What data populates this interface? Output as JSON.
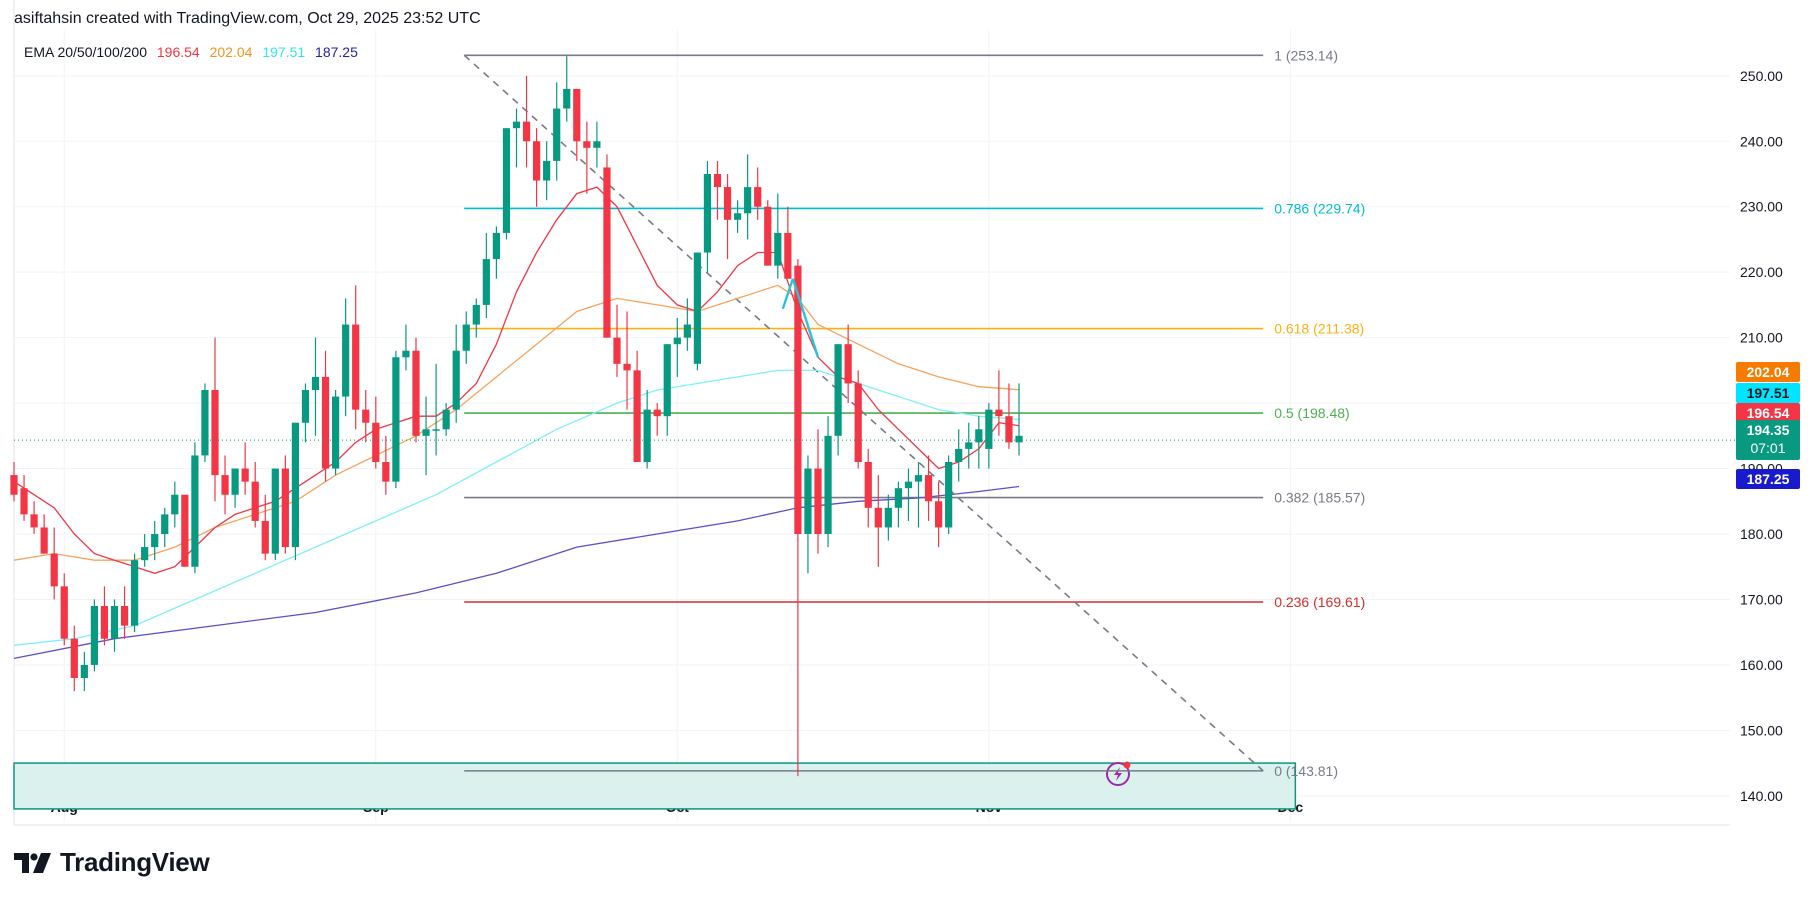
{
  "header": {
    "attribution": "asiftahsin created with TradingView.com, Oct 29, 2025 23:52 UTC"
  },
  "legend": {
    "label": "EMA 20/50/100/200",
    "values": [
      {
        "text": "196.54",
        "color": "#f23645"
      },
      {
        "text": "202.04",
        "color": "#f7931a"
      },
      {
        "text": "197.51",
        "color": "#33e3f0"
      },
      {
        "text": "187.25",
        "color": "#1f1fb4"
      }
    ]
  },
  "brand": {
    "name": "TradingView",
    "icon": "tradingview-logo-icon"
  },
  "colors": {
    "up": "#089981",
    "down": "#f23645",
    "ema20": "#f23645",
    "ema50": "#f7a35c",
    "ema100": "#7ff0f7",
    "ema200": "#5b4fc9",
    "zone_fill": "#daf1ee",
    "zone_border": "#089981"
  },
  "chart_data": {
    "type": "candlestick",
    "y_axis": {
      "min": 136,
      "max": 257,
      "ticks": [
        "140.00",
        "150.00",
        "160.00",
        "170.00",
        "180.00",
        "190.00",
        "200.00",
        "210.00",
        "220.00",
        "230.00",
        "240.00",
        "250.00"
      ],
      "side": "right"
    },
    "x_axis": {
      "labels": [
        {
          "text": "Aug",
          "index": 5
        },
        {
          "text": "Sep",
          "index": 36
        },
        {
          "text": "Oct",
          "index": 66
        },
        {
          "text": "Nov",
          "index": 97
        },
        {
          "text": "Dec",
          "index": 127
        }
      ],
      "first_index": 0,
      "last_index": 129
    },
    "grid": true,
    "candles": [
      [
        0,
        189,
        191,
        185,
        186
      ],
      [
        1,
        187,
        189,
        182,
        183
      ],
      [
        2,
        183,
        185,
        180,
        181
      ],
      [
        3,
        181,
        183,
        177,
        177
      ],
      [
        4,
        177,
        181,
        170,
        172
      ],
      [
        5,
        172,
        174,
        163,
        164
      ],
      [
        6,
        164,
        166,
        156,
        158
      ],
      [
        7,
        158,
        162,
        156,
        160
      ],
      [
        8,
        160,
        170,
        159,
        169
      ],
      [
        9,
        169,
        172,
        163,
        164
      ],
      [
        10,
        164,
        170,
        162,
        169
      ],
      [
        11,
        169,
        172,
        164,
        166
      ],
      [
        12,
        166,
        177,
        165,
        176
      ],
      [
        13,
        176,
        180,
        175,
        178
      ],
      [
        14,
        178,
        182,
        176,
        180
      ],
      [
        15,
        180,
        184,
        178,
        183
      ],
      [
        16,
        183,
        188,
        181,
        186
      ],
      [
        17,
        186,
        185,
        175,
        175
      ],
      [
        18,
        175,
        194,
        174,
        192
      ],
      [
        19,
        192,
        203,
        191,
        202
      ],
      [
        20,
        202,
        210,
        185,
        189
      ],
      [
        21,
        189,
        192,
        183,
        186
      ],
      [
        22,
        186,
        190,
        184,
        190
      ],
      [
        23,
        190,
        194,
        186,
        188
      ],
      [
        24,
        188,
        191,
        181,
        182
      ],
      [
        25,
        182,
        186,
        176,
        177
      ],
      [
        26,
        177,
        190,
        176,
        190
      ],
      [
        27,
        190,
        192,
        177,
        178
      ],
      [
        28,
        178,
        197,
        176,
        197
      ],
      [
        29,
        197,
        203,
        194,
        202
      ],
      [
        30,
        202,
        210,
        195,
        204
      ],
      [
        31,
        204,
        208,
        188,
        190
      ],
      [
        32,
        190,
        202,
        189,
        201
      ],
      [
        33,
        201,
        216,
        198,
        212
      ],
      [
        34,
        212,
        218,
        196,
        199
      ],
      [
        35,
        199,
        202,
        194,
        197
      ],
      [
        36,
        197,
        201,
        190,
        191
      ],
      [
        37,
        191,
        195,
        186,
        188
      ],
      [
        38,
        188,
        208,
        187,
        207
      ],
      [
        39,
        207,
        212,
        205,
        208
      ],
      [
        40,
        208,
        210,
        194,
        195
      ],
      [
        41,
        195,
        201,
        189,
        196
      ],
      [
        42,
        196,
        206,
        192,
        196
      ],
      [
        43,
        196,
        200,
        195,
        199
      ],
      [
        44,
        199,
        212,
        197,
        208
      ],
      [
        45,
        208,
        214,
        206,
        212
      ],
      [
        46,
        212,
        216,
        210,
        215
      ],
      [
        47,
        215,
        226,
        213,
        222
      ],
      [
        48,
        222,
        227,
        219,
        226
      ],
      [
        49,
        226,
        242,
        225,
        242
      ],
      [
        50,
        242,
        245,
        236,
        243
      ],
      [
        51,
        243,
        250,
        236,
        240
      ],
      [
        52,
        240,
        242,
        230,
        234
      ],
      [
        53,
        234,
        240,
        231,
        237
      ],
      [
        54,
        237,
        249,
        234,
        245
      ],
      [
        55,
        245,
        253,
        243,
        248
      ],
      [
        56,
        248,
        248,
        237,
        240
      ],
      [
        57,
        240,
        243,
        232,
        239
      ],
      [
        58,
        239,
        243,
        236,
        240
      ],
      [
        59,
        236,
        238,
        210,
        210
      ],
      [
        60,
        210,
        215,
        204,
        206
      ],
      [
        61,
        206,
        214,
        199,
        205
      ],
      [
        62,
        205,
        208,
        191,
        191
      ],
      [
        63,
        191,
        202,
        190,
        199
      ],
      [
        64,
        199,
        200,
        195,
        198
      ],
      [
        65,
        198,
        209,
        195,
        209
      ],
      [
        66,
        209,
        213,
        204,
        210
      ],
      [
        67,
        210,
        216,
        208,
        212
      ],
      [
        68,
        206,
        223,
        205,
        223
      ],
      [
        69,
        223,
        237,
        220,
        235
      ],
      [
        70,
        235,
        237,
        228,
        233
      ],
      [
        71,
        233,
        235,
        222,
        228
      ],
      [
        72,
        228,
        231,
        226,
        229
      ],
      [
        73,
        229,
        238,
        225,
        233
      ],
      [
        74,
        233,
        236,
        228,
        230
      ],
      [
        75,
        230,
        231,
        221,
        221
      ],
      [
        76,
        221,
        232,
        219,
        226
      ],
      [
        77,
        226,
        230,
        219,
        219
      ],
      [
        78,
        221,
        222,
        143,
        180
      ],
      [
        79,
        180,
        192,
        174,
        190
      ],
      [
        80,
        190,
        196,
        177,
        180
      ],
      [
        81,
        180,
        198,
        178,
        195
      ],
      [
        82,
        195,
        209,
        192,
        209
      ],
      [
        83,
        209,
        212,
        200,
        203
      ],
      [
        84,
        203,
        205,
        190,
        191
      ],
      [
        85,
        191,
        193,
        181,
        184
      ],
      [
        86,
        184,
        189,
        175,
        181
      ],
      [
        87,
        181,
        186,
        179,
        184
      ],
      [
        88,
        184,
        188,
        181,
        187
      ],
      [
        89,
        187,
        190,
        182,
        188
      ],
      [
        90,
        188,
        191,
        181,
        189
      ],
      [
        91,
        189,
        192,
        182,
        185
      ],
      [
        92,
        185,
        188,
        178,
        181
      ],
      [
        93,
        181,
        192,
        180,
        191
      ],
      [
        94,
        191,
        196,
        188,
        193
      ],
      [
        95,
        193,
        197,
        190,
        194
      ],
      [
        96,
        194,
        198,
        190,
        196
      ],
      [
        97,
        193,
        200,
        190,
        199
      ],
      [
        98,
        199,
        205,
        195,
        198
      ],
      [
        99,
        198,
        203,
        193,
        194
      ],
      [
        100,
        194,
        203,
        192,
        195
      ]
    ],
    "emas": {
      "ema20": [
        [
          0,
          188
        ],
        [
          2,
          186
        ],
        [
          4,
          184
        ],
        [
          6,
          180
        ],
        [
          8,
          177
        ],
        [
          10,
          176
        ],
        [
          12,
          175
        ],
        [
          14,
          174
        ],
        [
          16,
          175
        ],
        [
          18,
          178
        ],
        [
          20,
          181
        ],
        [
          22,
          183
        ],
        [
          24,
          184
        ],
        [
          26,
          185
        ],
        [
          28,
          187
        ],
        [
          30,
          189
        ],
        [
          32,
          191
        ],
        [
          34,
          194
        ],
        [
          36,
          196
        ],
        [
          38,
          197
        ],
        [
          40,
          198
        ],
        [
          42,
          198
        ],
        [
          44,
          200
        ],
        [
          46,
          203
        ],
        [
          48,
          209
        ],
        [
          50,
          217
        ],
        [
          52,
          223
        ],
        [
          54,
          228
        ],
        [
          56,
          232
        ],
        [
          58,
          233
        ],
        [
          60,
          230
        ],
        [
          62,
          224
        ],
        [
          64,
          218
        ],
        [
          66,
          215
        ],
        [
          68,
          214
        ],
        [
          70,
          217
        ],
        [
          72,
          221
        ],
        [
          74,
          223
        ],
        [
          76,
          223
        ],
        [
          78,
          214
        ],
        [
          80,
          207
        ],
        [
          82,
          204
        ],
        [
          84,
          203
        ],
        [
          86,
          199
        ],
        [
          88,
          196
        ],
        [
          90,
          193
        ],
        [
          92,
          190
        ],
        [
          94,
          191
        ],
        [
          96,
          193
        ],
        [
          98,
          197
        ],
        [
          100,
          196.54
        ]
      ],
      "ema50": [
        [
          0,
          176
        ],
        [
          4,
          177
        ],
        [
          8,
          176
        ],
        [
          12,
          176
        ],
        [
          16,
          178
        ],
        [
          20,
          181
        ],
        [
          24,
          183
        ],
        [
          28,
          185
        ],
        [
          32,
          189
        ],
        [
          36,
          192
        ],
        [
          40,
          195
        ],
        [
          44,
          199
        ],
        [
          48,
          204
        ],
        [
          52,
          209
        ],
        [
          56,
          214
        ],
        [
          60,
          216
        ],
        [
          64,
          215
        ],
        [
          68,
          214
        ],
        [
          72,
          216
        ],
        [
          76,
          218
        ],
        [
          78,
          216
        ],
        [
          80,
          212
        ],
        [
          84,
          209
        ],
        [
          88,
          206
        ],
        [
          92,
          204
        ],
        [
          96,
          202.5
        ],
        [
          100,
          202.04
        ]
      ],
      "ema100": [
        [
          0,
          163
        ],
        [
          6,
          164
        ],
        [
          12,
          166
        ],
        [
          18,
          170
        ],
        [
          24,
          174
        ],
        [
          30,
          178
        ],
        [
          36,
          182
        ],
        [
          42,
          186
        ],
        [
          48,
          191
        ],
        [
          54,
          196
        ],
        [
          60,
          200
        ],
        [
          64,
          202
        ],
        [
          68,
          203
        ],
        [
          72,
          204
        ],
        [
          76,
          205
        ],
        [
          80,
          205
        ],
        [
          84,
          203
        ],
        [
          88,
          201
        ],
        [
          92,
          199
        ],
        [
          96,
          198
        ],
        [
          100,
          197.51
        ]
      ],
      "ema200": [
        [
          0,
          161
        ],
        [
          10,
          164
        ],
        [
          20,
          166
        ],
        [
          30,
          168
        ],
        [
          40,
          171
        ],
        [
          48,
          174
        ],
        [
          56,
          178
        ],
        [
          64,
          180
        ],
        [
          72,
          182
        ],
        [
          78,
          184
        ],
        [
          84,
          185
        ],
        [
          90,
          185.5
        ],
        [
          96,
          186.5
        ],
        [
          100,
          187.25
        ]
      ]
    },
    "fibonacci": {
      "start_index": 44,
      "end_index": 124,
      "levels": [
        {
          "text": "1 (253.14)",
          "value": 253.14,
          "color": "#787b86"
        },
        {
          "text": "0.786 (229.74)",
          "value": 229.74,
          "color": "#00bcd4"
        },
        {
          "text": "0.618 (211.38)",
          "value": 211.38,
          "color": "#f9b115"
        },
        {
          "text": "0.5 (198.48)",
          "value": 198.48,
          "color": "#4caf50"
        },
        {
          "text": "0.382 (185.57)",
          "value": 185.57,
          "color": "#787b86"
        },
        {
          "text": "0.236 (169.61)",
          "value": 169.61,
          "color": "#d32f2f"
        },
        {
          "text": "0 (143.81)",
          "value": 143.81,
          "color": "#787b86"
        }
      ],
      "trend_line": {
        "from": [
          44,
          253.14
        ],
        "to": [
          124,
          143.81
        ]
      }
    },
    "zone": {
      "x_start": 0,
      "x_end": 127,
      "y_top": 145,
      "y_bottom": 138
    },
    "cross_marker": {
      "from": [
        77,
        219
      ],
      "to": [
        80,
        207
      ]
    },
    "price_labels": [
      {
        "text": "202.04",
        "value": 202.04,
        "bg": "#f57c00"
      },
      {
        "text": "197.51",
        "value": 197.51,
        "bg": "#00e5ff",
        "fg": "#131722"
      },
      {
        "text": "196.54",
        "value": 196.54,
        "bg": "#f23645"
      },
      {
        "text": "194.35",
        "sub": "07:01",
        "value": 194.35,
        "bg": "#089981"
      },
      {
        "text": "187.25",
        "value": 187.25,
        "bg": "#1a1acd"
      }
    ],
    "current_price": 194.35
  }
}
